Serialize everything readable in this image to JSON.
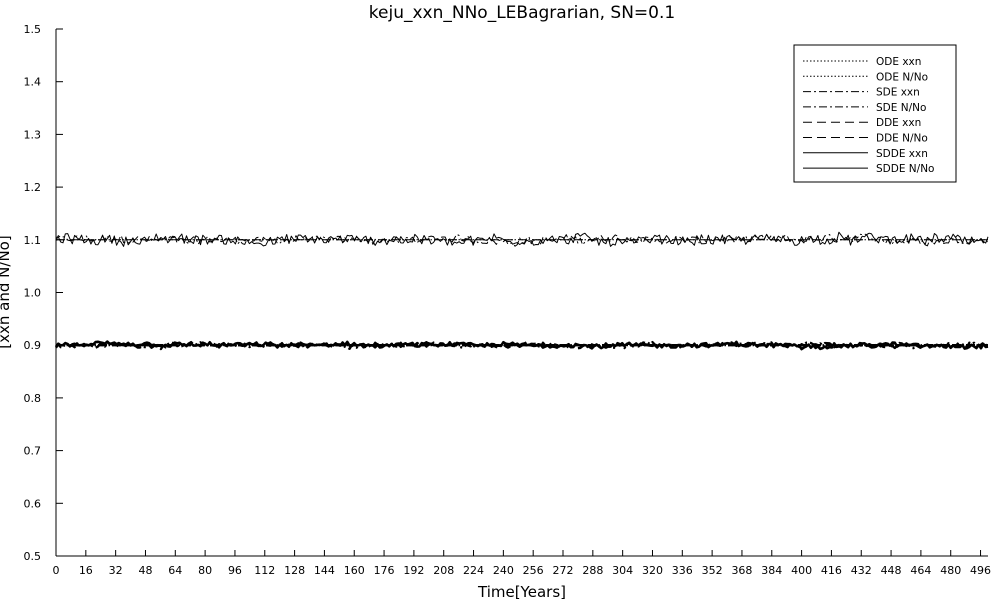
{
  "chart_data": {
    "type": "line",
    "title": "keju_xxn_NNo_LEBagrarian, SN=0.1",
    "xlabel": "Time[Years]",
    "ylabel": "[xxn and N/No]",
    "xlim": [
      0,
      500
    ],
    "ylim": [
      0.5,
      1.5
    ],
    "x_ticks": [
      0,
      16,
      32,
      48,
      64,
      80,
      96,
      112,
      128,
      144,
      160,
      176,
      192,
      208,
      224,
      240,
      256,
      272,
      288,
      304,
      320,
      336,
      352,
      368,
      384,
      400,
      416,
      432,
      448,
      464,
      480,
      496
    ],
    "y_ticks": [
      "0.5",
      "0.6",
      "0.7",
      "0.8",
      "0.9",
      "1.0",
      "1.1",
      "1.2",
      "1.3",
      "1.4",
      "1.5"
    ],
    "grid": false,
    "legend_position": "top-right",
    "series": [
      {
        "name": "ODE xxn",
        "style": "dotted",
        "level": 1.1,
        "noise": 0.0,
        "width": 1.0
      },
      {
        "name": "ODE N/No",
        "style": "dotted",
        "level": 0.9,
        "noise": 0.0,
        "width": 2.2
      },
      {
        "name": "SDE xxn",
        "style": "dashdot",
        "level": 1.1,
        "noise": 0.007,
        "width": 1.0
      },
      {
        "name": "SDE N/No",
        "style": "dashdot",
        "level": 0.9,
        "noise": 0.004,
        "width": 2.4
      },
      {
        "name": "DDE xxn",
        "style": "dashed",
        "level": 1.1,
        "noise": 0.0,
        "width": 1.0
      },
      {
        "name": "DDE N/No",
        "style": "dashed",
        "level": 0.9,
        "noise": 0.0,
        "width": 2.4
      },
      {
        "name": "SDDE xxn",
        "style": "solid",
        "level": 1.1,
        "noise": 0.009,
        "width": 1.0
      },
      {
        "name": "SDDE N/No",
        "style": "solid",
        "level": 0.9,
        "noise": 0.004,
        "width": 2.6
      }
    ]
  }
}
